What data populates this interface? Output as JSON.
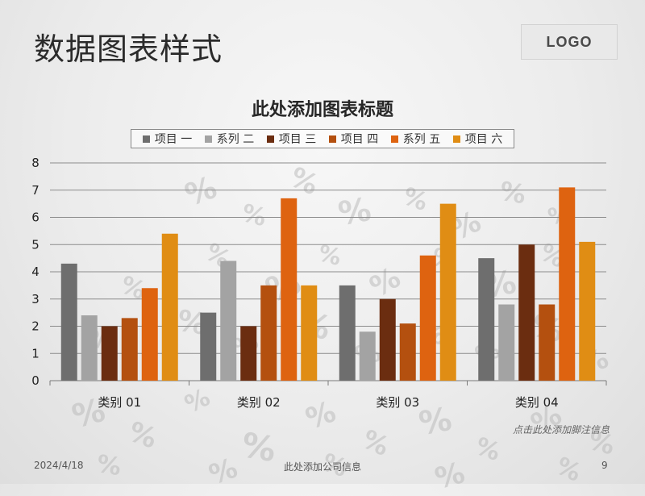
{
  "slide": {
    "title": "数据图表样式",
    "logo": "LOGO",
    "footnote": "点击此处添加脚注信息",
    "footer_date": "2024/4/18",
    "footer_company": "此处添加公司信息",
    "page_number": "9"
  },
  "chart_data": {
    "type": "bar",
    "title": "此处添加图表标题",
    "categories": [
      "类别 01",
      "类别 02",
      "类别 03",
      "类别 04"
    ],
    "series": [
      {
        "name": "项目 一",
        "color": "#6e6e6e",
        "values": [
          4.3,
          2.5,
          3.5,
          4.5
        ]
      },
      {
        "name": "系列 二",
        "color": "#a3a3a3",
        "values": [
          2.4,
          4.4,
          1.8,
          2.8
        ]
      },
      {
        "name": "项目 三",
        "color": "#6b2d10",
        "values": [
          2.0,
          2.0,
          3.0,
          5.0
        ]
      },
      {
        "name": "项目 四",
        "color": "#b4500f",
        "values": [
          2.3,
          3.5,
          2.1,
          2.8
        ]
      },
      {
        "name": "系列 五",
        "color": "#de6310",
        "values": [
          3.4,
          6.7,
          4.6,
          7.1
        ]
      },
      {
        "name": "项目 六",
        "color": "#e08d14",
        "values": [
          5.4,
          3.5,
          6.5,
          5.1
        ]
      }
    ],
    "ylim": [
      0,
      8
    ],
    "yticks": [
      "0",
      "1",
      "2",
      "3",
      "4",
      "5",
      "6",
      "7",
      "8"
    ],
    "legend": "top",
    "grid": true
  }
}
